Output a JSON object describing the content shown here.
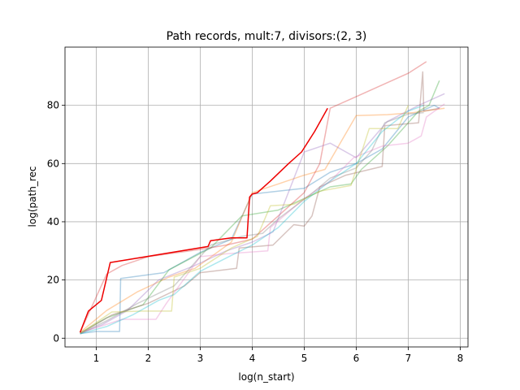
{
  "chart_data": {
    "type": "line",
    "title": "Path records, mult:7, divisors:(2, 3)",
    "xlabel": "log(n_start)",
    "ylabel": "log(path_rec",
    "xlim": [
      0.4,
      8.15
    ],
    "ylim": [
      -3,
      100
    ],
    "xticks": [
      1,
      2,
      3,
      4,
      5,
      6,
      7,
      8
    ],
    "yticks": [
      0,
      20,
      40,
      60,
      80
    ],
    "grid": true,
    "series": [
      {
        "color": "#1f77b4",
        "alpha": 0.35,
        "points": [
          [
            0.69,
            1.6
          ],
          [
            1.0,
            2.3
          ],
          [
            1.45,
            2.3
          ],
          [
            1.47,
            20.5
          ],
          [
            2.3,
            22.5
          ],
          [
            3.0,
            29.5
          ],
          [
            3.6,
            34.0
          ],
          [
            4.0,
            49.5
          ],
          [
            4.5,
            50.5
          ],
          [
            5.0,
            51.5
          ],
          [
            5.5,
            57.0
          ],
          [
            6.0,
            60.0
          ],
          [
            6.5,
            65.0
          ],
          [
            7.0,
            76.0
          ],
          [
            7.5,
            80.0
          ],
          [
            7.6,
            79.0
          ]
        ]
      },
      {
        "color": "#ff7f0e",
        "alpha": 0.35,
        "points": [
          [
            0.69,
            2.0
          ],
          [
            1.2,
            9.5
          ],
          [
            1.8,
            16.0
          ],
          [
            2.4,
            21.0
          ],
          [
            2.9,
            24.0
          ],
          [
            3.6,
            33.0
          ],
          [
            4.0,
            50.0
          ],
          [
            4.5,
            53.0
          ],
          [
            5.0,
            56.0
          ],
          [
            5.4,
            58.0
          ],
          [
            6.0,
            76.5
          ],
          [
            6.6,
            76.8
          ],
          [
            7.1,
            77.5
          ],
          [
            7.5,
            78.5
          ],
          [
            7.7,
            79.0
          ]
        ]
      },
      {
        "color": "#2ca02c",
        "alpha": 0.35,
        "points": [
          [
            0.69,
            1.8
          ],
          [
            1.2,
            7.0
          ],
          [
            1.9,
            11.5
          ],
          [
            2.4,
            23.5
          ],
          [
            3.2,
            31.0
          ],
          [
            3.8,
            42.0
          ],
          [
            4.5,
            44.0
          ],
          [
            5.0,
            48.0
          ],
          [
            5.5,
            52.0
          ],
          [
            5.9,
            53.0
          ],
          [
            6.1,
            58.0
          ],
          [
            6.6,
            66.0
          ],
          [
            7.2,
            78.0
          ],
          [
            7.4,
            80.0
          ],
          [
            7.6,
            88.5
          ]
        ]
      },
      {
        "color": "#d62728",
        "alpha": 0.35,
        "points": [
          [
            0.69,
            2.0
          ],
          [
            1.2,
            22.0
          ],
          [
            1.5,
            25.0
          ],
          [
            2.0,
            28.0
          ],
          [
            3.0,
            30.5
          ],
          [
            3.5,
            32.0
          ],
          [
            4.0,
            34.0
          ],
          [
            4.5,
            42.0
          ],
          [
            5.0,
            50.0
          ],
          [
            5.3,
            60.0
          ],
          [
            5.5,
            79.0
          ],
          [
            6.0,
            83.0
          ],
          [
            6.5,
            87.0
          ],
          [
            7.0,
            91.0
          ],
          [
            7.35,
            95.0
          ]
        ]
      },
      {
        "color": "#9467bd",
        "alpha": 0.35,
        "points": [
          [
            0.69,
            1.7
          ],
          [
            1.1,
            4.5
          ],
          [
            1.6,
            9.5
          ],
          [
            2.2,
            20.0
          ],
          [
            2.9,
            25.0
          ],
          [
            3.5,
            30.0
          ],
          [
            4.0,
            33.0
          ],
          [
            4.4,
            36.5
          ],
          [
            5.0,
            64.0
          ],
          [
            5.5,
            67.0
          ],
          [
            6.0,
            62.0
          ],
          [
            6.6,
            74.5
          ],
          [
            7.2,
            80.0
          ],
          [
            7.7,
            84.0
          ]
        ]
      },
      {
        "color": "#8c564b",
        "alpha": 0.35,
        "points": [
          [
            0.69,
            1.6
          ],
          [
            1.3,
            8.0
          ],
          [
            2.0,
            12.0
          ],
          [
            2.7,
            18.0
          ],
          [
            3.0,
            22.5
          ],
          [
            3.7,
            24.0
          ],
          [
            3.75,
            31.0
          ],
          [
            4.4,
            32.0
          ],
          [
            4.8,
            39.0
          ],
          [
            5.0,
            38.5
          ],
          [
            5.15,
            42.0
          ],
          [
            5.3,
            52.0
          ],
          [
            5.8,
            56.0
          ],
          [
            6.5,
            59.0
          ],
          [
            6.55,
            73.0
          ],
          [
            7.2,
            74.0
          ],
          [
            7.28,
            91.5
          ],
          [
            7.3,
            78.0
          ],
          [
            7.6,
            79.0
          ]
        ]
      },
      {
        "color": "#e377c2",
        "alpha": 0.35,
        "points": [
          [
            0.69,
            1.8
          ],
          [
            1.5,
            6.5
          ],
          [
            2.15,
            6.5
          ],
          [
            2.35,
            12.0
          ],
          [
            3.0,
            28.0
          ],
          [
            3.5,
            29.0
          ],
          [
            4.3,
            30.0
          ],
          [
            4.35,
            38.0
          ],
          [
            5.0,
            48.0
          ],
          [
            5.5,
            54.0
          ],
          [
            5.95,
            62.0
          ],
          [
            6.5,
            66.0
          ],
          [
            7.0,
            67.0
          ],
          [
            7.25,
            69.5
          ],
          [
            7.35,
            76.0
          ],
          [
            7.7,
            80.5
          ]
        ]
      },
      {
        "color": "#7f7f7f",
        "alpha": 0.35,
        "points": [
          [
            0.69,
            1.5
          ],
          [
            1.2,
            6.0
          ],
          [
            1.8,
            12.0
          ],
          [
            2.5,
            18.0
          ],
          [
            3.2,
            32.0
          ],
          [
            3.8,
            35.0
          ],
          [
            4.2,
            36.0
          ],
          [
            4.5,
            41.0
          ],
          [
            4.8,
            45.0
          ],
          [
            5.1,
            49.0
          ],
          [
            5.5,
            55.0
          ],
          [
            6.0,
            58.5
          ],
          [
            6.3,
            64.5
          ],
          [
            6.55,
            74.0
          ],
          [
            7.0,
            77.0
          ],
          [
            7.3,
            77.5
          ]
        ]
      },
      {
        "color": "#bcbd22",
        "alpha": 0.35,
        "points": [
          [
            0.69,
            1.6
          ],
          [
            1.3,
            9.0
          ],
          [
            1.9,
            9.3
          ],
          [
            2.45,
            9.3
          ],
          [
            2.5,
            21.0
          ],
          [
            3.0,
            24.0
          ],
          [
            3.6,
            31.0
          ],
          [
            4.1,
            35.0
          ],
          [
            4.35,
            45.5
          ],
          [
            4.8,
            46.0
          ],
          [
            5.3,
            50.5
          ],
          [
            5.9,
            52.5
          ],
          [
            6.25,
            72.0
          ],
          [
            6.8,
            72.0
          ],
          [
            7.0,
            80.0
          ]
        ]
      },
      {
        "color": "#17becf",
        "alpha": 0.35,
        "points": [
          [
            0.69,
            1.5
          ],
          [
            1.2,
            4.0
          ],
          [
            1.7,
            8.0
          ],
          [
            2.2,
            13.0
          ],
          [
            2.5,
            15.0
          ],
          [
            3.0,
            23.0
          ],
          [
            3.55,
            28.0
          ],
          [
            4.0,
            32.0
          ],
          [
            4.5,
            38.0
          ],
          [
            5.0,
            47.0
          ],
          [
            5.5,
            54.0
          ],
          [
            6.0,
            60.0
          ],
          [
            6.5,
            71.0
          ],
          [
            7.0,
            78.0
          ],
          [
            7.3,
            80.0
          ]
        ]
      },
      {
        "color": "#ee0000",
        "alpha": 1.0,
        "width": 1.5,
        "points": [
          [
            0.69,
            2.0
          ],
          [
            0.85,
            9.3
          ],
          [
            1.1,
            13.0
          ],
          [
            1.27,
            26.0
          ],
          [
            3.15,
            31.5
          ],
          [
            3.2,
            33.5
          ],
          [
            3.6,
            34.5
          ],
          [
            3.9,
            34.5
          ],
          [
            3.95,
            48.5
          ],
          [
            4.0,
            49.5
          ],
          [
            4.1,
            50.0
          ],
          [
            4.35,
            54.0
          ],
          [
            4.7,
            60.0
          ],
          [
            4.95,
            64.0
          ],
          [
            5.2,
            71.0
          ],
          [
            5.45,
            79.0
          ]
        ]
      }
    ]
  }
}
